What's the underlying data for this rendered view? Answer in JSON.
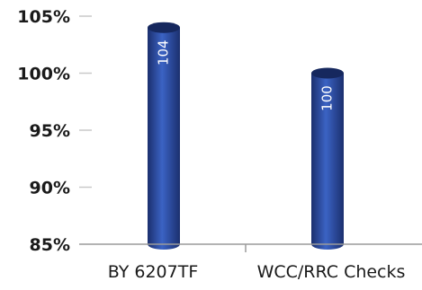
{
  "chart_data": {
    "type": "bar",
    "title": "",
    "xlabel": "",
    "ylabel": "",
    "categories": [
      "BY 6207TF",
      "WCC/RRC Checks"
    ],
    "values": [
      104,
      100
    ],
    "data_labels": [
      "104",
      "100"
    ],
    "ylim": [
      85,
      105
    ],
    "yticks": [
      85,
      90,
      95,
      100,
      105
    ],
    "ytick_labels": [
      "85%",
      "90%",
      "95%",
      "100%",
      "105%"
    ],
    "grid": false,
    "legend": "none",
    "bar_style": "cylinder",
    "data_label_orientation": "vertical",
    "colors": {
      "bar_dark": "#1b2f6e",
      "bar_mid": "#2b4aa0",
      "bar_light": "#3b63c4",
      "bar_top": "#16285e",
      "axis": "#9a9a9a",
      "tick": "#c9c9c9",
      "text": "#1a1a1a",
      "data_label": "#ffffff"
    }
  }
}
